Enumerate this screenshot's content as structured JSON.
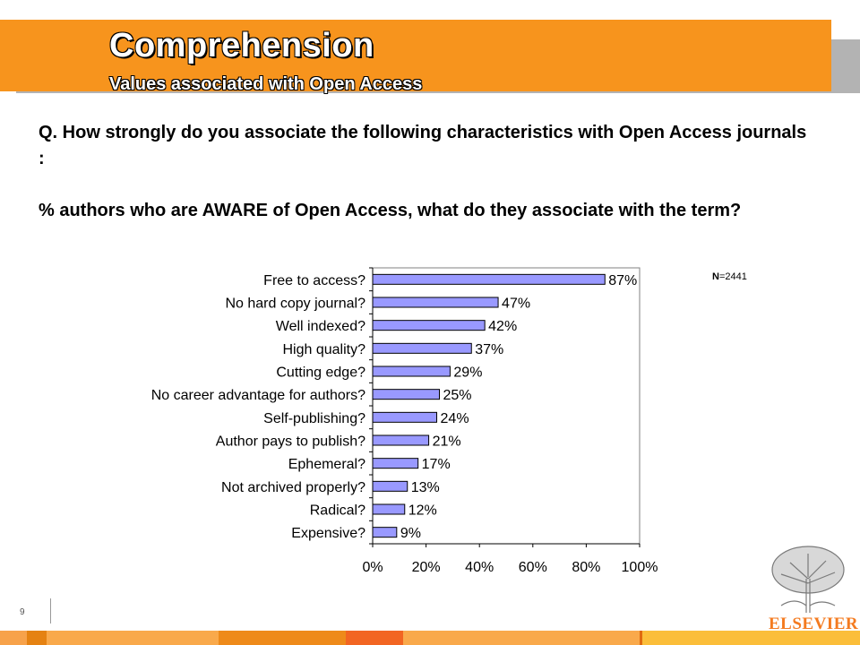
{
  "header": {
    "title": "Comprehension",
    "subtitle": "Values associated with Open Access"
  },
  "question": {
    "line1": "Q. How strongly do you associate the following characteristics with Open Access journals :",
    "line2": "% authors who are AWARE of Open Access, what do they associate with the term?"
  },
  "sample": {
    "n_label": "N",
    "n_value": "=2441"
  },
  "footer": {
    "page_number": "9",
    "logo_text": "ELSEVIER"
  },
  "colors": {
    "banner": "#f7941d",
    "bar_fill": "#9999ff",
    "bar_stroke": "#000000",
    "logo": "#f47b20"
  },
  "chart_data": {
    "type": "bar",
    "orientation": "horizontal",
    "categories": [
      "Free to access?",
      "No hard copy journal?",
      "Well indexed?",
      "High quality?",
      "Cutting edge?",
      "No career advantage for authors?",
      "Self-publishing?",
      "Author pays to publish?",
      "Ephemeral?",
      "Not archived properly?",
      "Radical?",
      "Expensive?"
    ],
    "values": [
      87,
      47,
      42,
      37,
      29,
      25,
      24,
      21,
      17,
      13,
      12,
      9
    ],
    "value_labels": [
      "87%",
      "47%",
      "42%",
      "37%",
      "29%",
      "25%",
      "24%",
      "21%",
      "17%",
      "13%",
      "12%",
      "9%"
    ],
    "xlim": [
      0,
      100
    ],
    "xticks": [
      0,
      20,
      40,
      60,
      80,
      100
    ],
    "xtick_labels": [
      "0%",
      "20%",
      "40%",
      "60%",
      "80%",
      "100%"
    ],
    "grid": false,
    "legend": "none"
  }
}
